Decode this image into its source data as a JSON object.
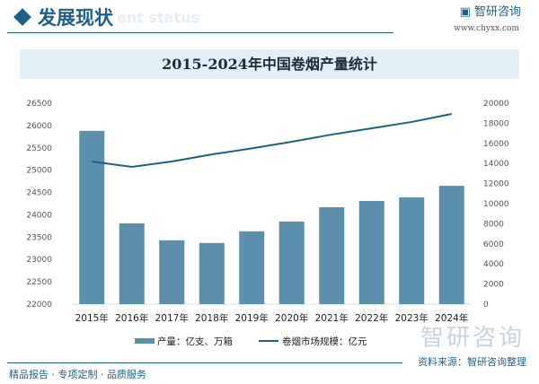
{
  "header": {
    "title": "发展现状",
    "subtitle": "ent status",
    "brand": "智研咨询",
    "url": "www.chyxx.com"
  },
  "footer": {
    "slogan": "精品报告 · 专项定制 · 品质服务",
    "source": "资料来源：智研咨询整理",
    "watermark": "智研咨询"
  },
  "chart_data": {
    "type": "bar+line",
    "title": "2015-2024年中国卷烟产量统计",
    "categories": [
      "2015年",
      "2016年",
      "2017年",
      "2018年",
      "2019年",
      "2020年",
      "2021年",
      "2022年",
      "2023年",
      "2024年"
    ],
    "series": [
      {
        "name": "产量：亿支、万箱",
        "type": "bar",
        "axis": "left",
        "color": "#5b8fab",
        "values": [
          25880,
          23810,
          23430,
          23370,
          23630,
          23850,
          24170,
          24310,
          24390,
          24650
        ]
      },
      {
        "name": "卷烟市场规模：亿元",
        "type": "line",
        "axis": "right",
        "color": "#1f5f7f",
        "values": [
          14200,
          13660,
          14200,
          14900,
          15500,
          16160,
          16880,
          17500,
          18130,
          18930
        ]
      }
    ],
    "y_left": {
      "range": [
        22000,
        26500
      ],
      "ticks": [
        22000,
        22500,
        23000,
        23500,
        24000,
        24500,
        25000,
        25500,
        26000,
        26500
      ]
    },
    "y_right": {
      "range": [
        0,
        20000
      ],
      "ticks": [
        0,
        2000,
        4000,
        6000,
        8000,
        10000,
        12000,
        14000,
        16000,
        18000,
        20000
      ]
    },
    "legend": "bottom",
    "grid": false
  }
}
